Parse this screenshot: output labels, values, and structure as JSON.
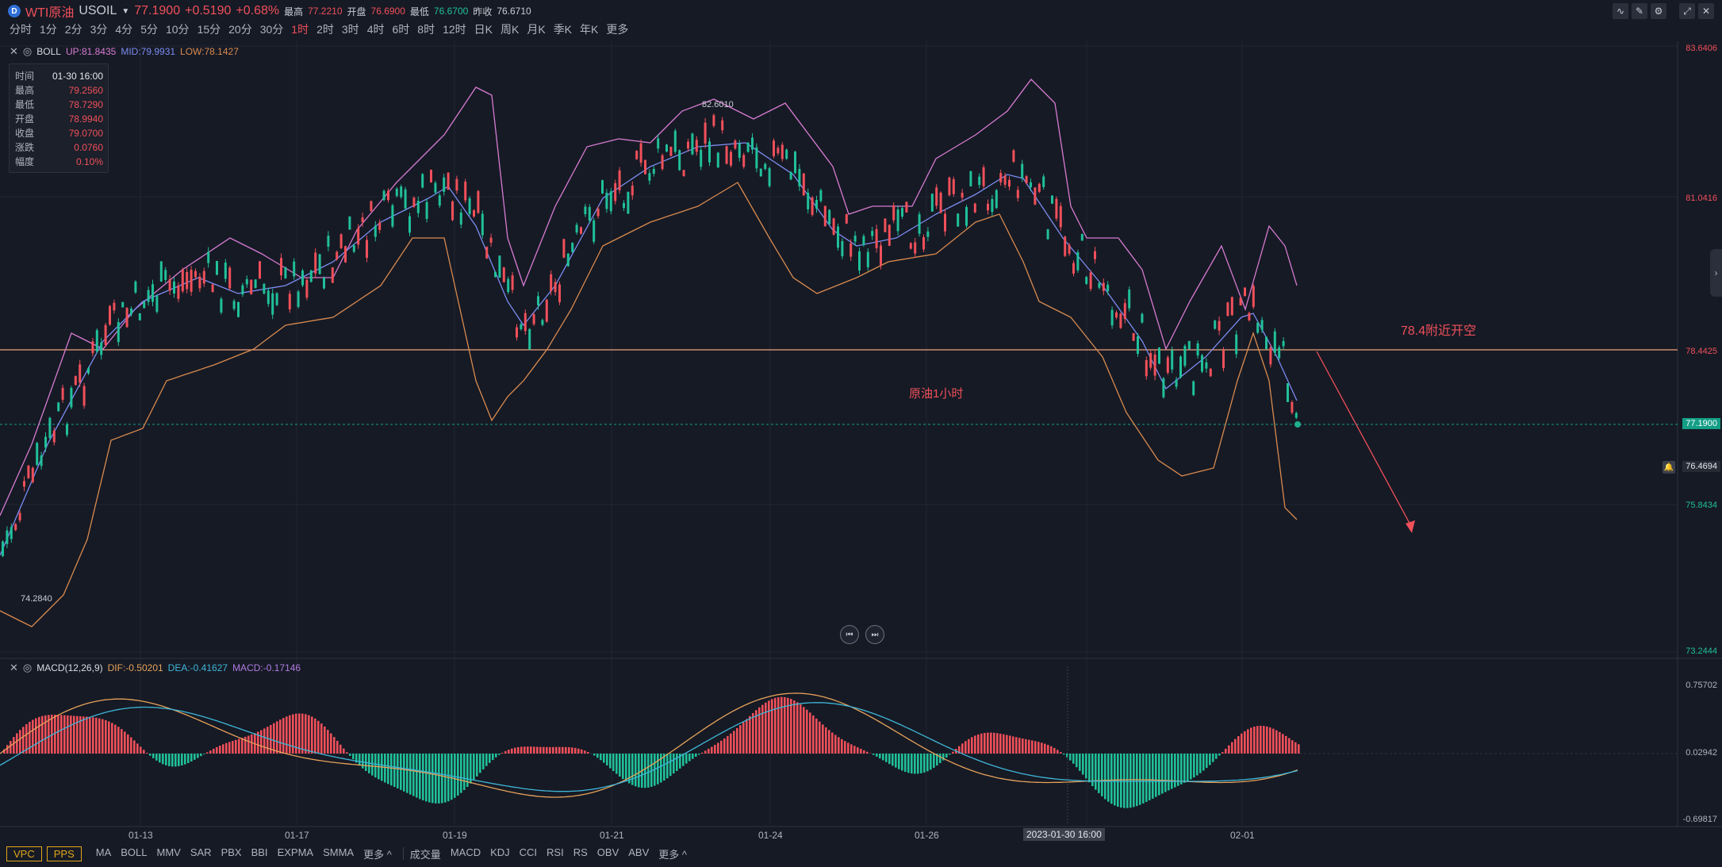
{
  "header": {
    "logo": "D",
    "symbol_cn": "WTI原油",
    "symbol": "USOIL",
    "last_price": "77.1900",
    "change": "+0.5190",
    "change_pct": "+0.68%",
    "high_label": "最高",
    "high": "77.2210",
    "open_label": "开盘",
    "open": "76.6900",
    "low_label": "最低",
    "low": "76.6700",
    "prev_close_label": "昨收",
    "prev_close": "76.6710"
  },
  "periods": [
    "分时",
    "1分",
    "2分",
    "3分",
    "4分",
    "5分",
    "10分",
    "15分",
    "20分",
    "30分",
    "1时",
    "2时",
    "3时",
    "4时",
    "6时",
    "8时",
    "12时",
    "日K",
    "周K",
    "月K",
    "季K",
    "年K",
    "更多"
  ],
  "active_period": "1时",
  "boll_legend": {
    "name": "BOLL",
    "up": "UP:81.8435",
    "mid": "MID:79.9931",
    "low": "LOW:78.1427"
  },
  "macd_legend": {
    "name": "MACD(12,26,9)",
    "dif": "DIF:-0.50201",
    "dea": "DEA:-0.41627",
    "macd": "MACD:-0.17146"
  },
  "infobox": {
    "time_label": "时间",
    "time": "01-30 16:00",
    "high_label": "最高",
    "high": "79.2560",
    "low_label": "最低",
    "low": "78.7290",
    "open_label": "开盘",
    "open": "78.9940",
    "close_label": "收盘",
    "close": "79.0700",
    "chg_label": "涨跌",
    "chg": "0.0760",
    "amp_label": "幅度",
    "amp": "0.10%"
  },
  "price_axis": [
    "83.6406",
    "81.0416",
    "78.4425",
    "75.8434",
    "73.2444"
  ],
  "price_tags": {
    "last": "77.1900",
    "alert": "76.4694"
  },
  "macd_axis": [
    "0.75702",
    "0.02942",
    "-0.69817"
  ],
  "time_axis": [
    "01-13",
    "01-17",
    "01-19",
    "01-21",
    "01-24",
    "01-26",
    "02-01"
  ],
  "crosshair_time": "2023-01-30 16:00",
  "annotations": {
    "peak": "82.6010",
    "trough": "74.2840",
    "title_note": "原油1小时",
    "short_note": "78.4附近开空"
  },
  "bottom_buttons": [
    "VPC",
    "PPS"
  ],
  "main_indicators": [
    "MA",
    "BOLL",
    "MMV",
    "SAR",
    "PBX",
    "BBI",
    "EXPMA",
    "SMMA",
    "更多 ^"
  ],
  "sub_indicators": [
    "成交量",
    "MACD",
    "KDJ",
    "CCI",
    "RSI",
    "RS",
    "OBV",
    "ABV",
    "更多 ^"
  ],
  "colors": {
    "up": "#f0505a",
    "down": "#20c09a",
    "boll_up": "#d77bd1",
    "boll_mid": "#7b8cf0",
    "boll_low": "#d98a4e",
    "dif": "#e6a25a",
    "dea": "#3fb6d8",
    "hline": "#f0a07a"
  }
}
